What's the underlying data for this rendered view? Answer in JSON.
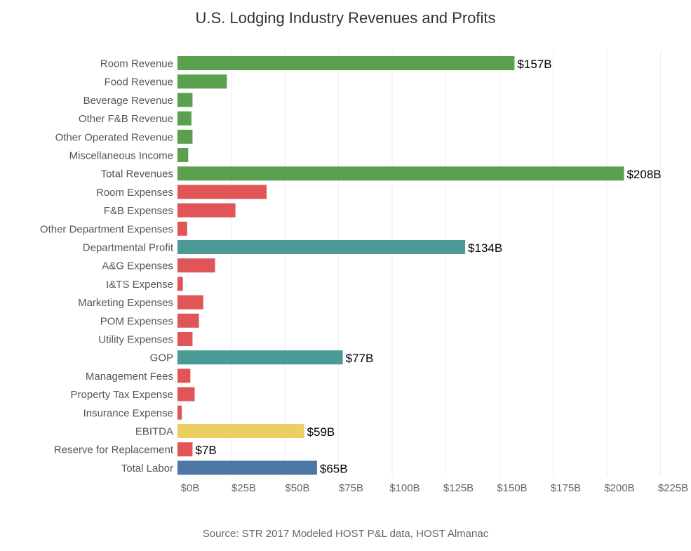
{
  "title": "U.S. Lodging Industry Revenues and Profits",
  "source": "Source:  STR 2017 Modeled HOST P&L data, HOST Almanac",
  "colors": {
    "revenue": "#5aa04f",
    "expense": "#df5558",
    "profit": "#4b9a96",
    "ebitda": "#ecce62",
    "labor": "#4d77a5"
  },
  "chart_data": {
    "type": "bar",
    "orientation": "horizontal",
    "title": "U.S. Lodging Industry Revenues and Profits",
    "xlim": [
      0,
      235
    ],
    "x_ticks": [
      0,
      25,
      50,
      75,
      100,
      125,
      150,
      175,
      200,
      225
    ],
    "x_tick_labels": [
      "$0B",
      "$25B",
      "$50B",
      "$75B",
      "$100B",
      "$125B",
      "$150B",
      "$175B",
      "$200B",
      "$225B"
    ],
    "grid": true,
    "legend": "none",
    "bars": [
      {
        "category": "Room Revenue",
        "value": 157,
        "group": "revenue",
        "label": "$157B"
      },
      {
        "category": "Food Revenue",
        "value": 23,
        "group": "revenue",
        "label": ""
      },
      {
        "category": "Beverage Revenue",
        "value": 7,
        "group": "revenue",
        "label": ""
      },
      {
        "category": "Other F&B Revenue",
        "value": 6.5,
        "group": "revenue",
        "label": ""
      },
      {
        "category": "Other Operated Revenue",
        "value": 7,
        "group": "revenue",
        "label": ""
      },
      {
        "category": "Miscellaneous Income",
        "value": 5,
        "group": "revenue",
        "label": ""
      },
      {
        "category": "Total Revenues",
        "value": 208,
        "group": "revenue",
        "label": "$208B"
      },
      {
        "category": "Room Expenses",
        "value": 41.5,
        "group": "expense",
        "label": ""
      },
      {
        "category": "F&B Expenses",
        "value": 27,
        "group": "expense",
        "label": ""
      },
      {
        "category": "Other Department Expenses",
        "value": 4.5,
        "group": "expense",
        "label": ""
      },
      {
        "category": "Departmental Profit",
        "value": 134,
        "group": "profit",
        "label": "$134B"
      },
      {
        "category": "A&G Expenses",
        "value": 17.5,
        "group": "expense",
        "label": ""
      },
      {
        "category": "I&TS Expense",
        "value": 2.5,
        "group": "expense",
        "label": ""
      },
      {
        "category": "Marketing Expenses",
        "value": 12,
        "group": "expense",
        "label": ""
      },
      {
        "category": "POM Expenses",
        "value": 10,
        "group": "expense",
        "label": ""
      },
      {
        "category": "Utility Expenses",
        "value": 7,
        "group": "expense",
        "label": ""
      },
      {
        "category": "GOP",
        "value": 77,
        "group": "profit",
        "label": "$77B"
      },
      {
        "category": "Management Fees",
        "value": 6,
        "group": "expense",
        "label": ""
      },
      {
        "category": "Property Tax Expense",
        "value": 8,
        "group": "expense",
        "label": ""
      },
      {
        "category": "Insurance Expense",
        "value": 2,
        "group": "expense",
        "label": ""
      },
      {
        "category": "EBITDA",
        "value": 59,
        "group": "ebitda",
        "label": "$59B"
      },
      {
        "category": "Reserve for Replacement",
        "value": 7,
        "group": "expense",
        "label": "$7B"
      },
      {
        "category": "Total Labor",
        "value": 65,
        "group": "labor",
        "label": "$65B"
      }
    ]
  }
}
